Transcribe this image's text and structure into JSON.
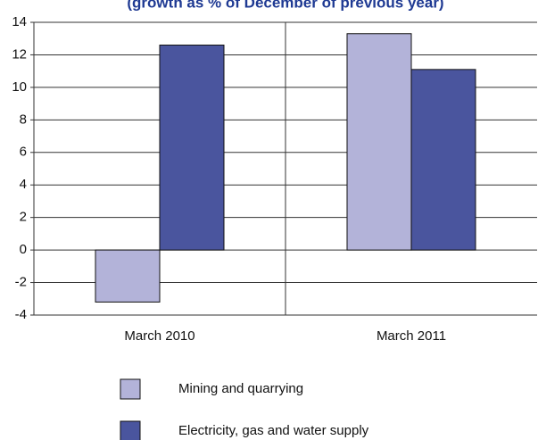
{
  "chart_data": {
    "type": "bar",
    "title": "(growth as % of December of previous year)",
    "categories": [
      "March 2010",
      "March 2011"
    ],
    "series": [
      {
        "name": "Mining and quarrying",
        "color": "#b3b3d9",
        "values": [
          -3.2,
          13.3
        ]
      },
      {
        "name": "Electricity, gas and water supply",
        "color": "#4a559e",
        "values": [
          12.6,
          11.1
        ]
      }
    ],
    "ylim": [
      -4,
      14
    ],
    "yticks": [
      -4,
      -2,
      0,
      2,
      4,
      6,
      8,
      10,
      12,
      14
    ],
    "grid": true
  }
}
